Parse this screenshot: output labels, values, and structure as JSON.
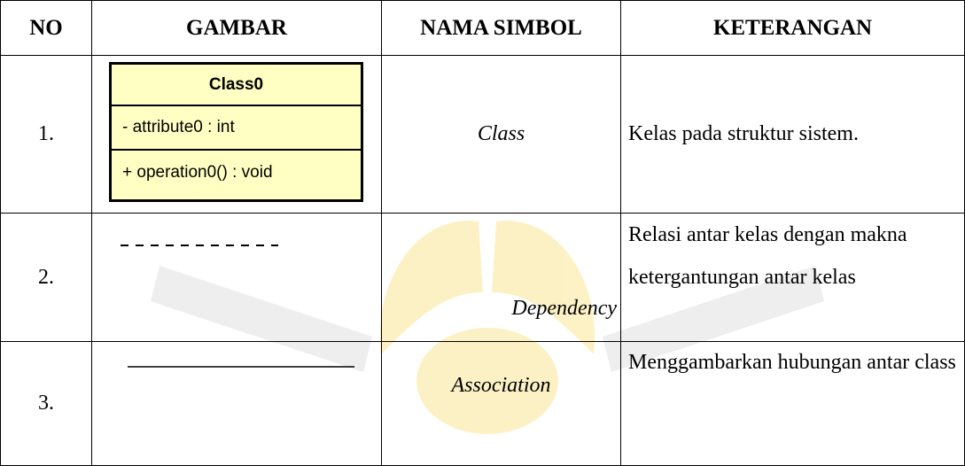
{
  "table": {
    "header": [
      "NO",
      "GAMBAR",
      "NAMA SIMBOL",
      "KETERANGAN"
    ],
    "rows": [
      {
        "no": "1.",
        "figure": {
          "class_name": "Class0",
          "attribute": "- attribute0 : int",
          "operation": "+ operation0() : void"
        },
        "name": "Class",
        "description": "Kelas pada struktur sistem."
      },
      {
        "no": "2.",
        "name": "Dependency",
        "description": "Relasi antar kelas dengan makna ketergantungan antar kelas"
      },
      {
        "no": "3.",
        "name": "Association",
        "description": "Menggambarkan hubungan antar class"
      }
    ]
  }
}
